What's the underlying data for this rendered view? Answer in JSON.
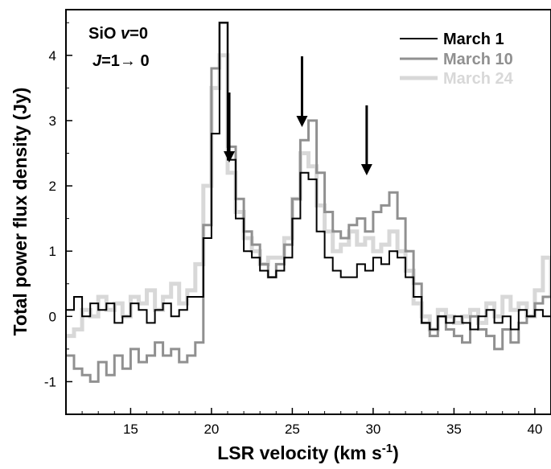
{
  "chart_data": {
    "type": "line",
    "xlabel_main": "LSR velocity (km s",
    "xlabel_sup": "-1",
    "xlabel_close": ")",
    "ylabel": "Total power flux density (Jy)",
    "annotation": {
      "line1_species": "SiO ",
      "line1_italic": "v",
      "line1_rest": "=0",
      "line2_italic": "J",
      "line2_rest": "=1→ 0"
    },
    "xlim": [
      11,
      41
    ],
    "ylim": [
      -1.5,
      4.7
    ],
    "xticks": [
      15,
      20,
      25,
      30,
      35,
      40
    ],
    "yticks": [
      -1,
      0,
      1,
      2,
      3,
      4
    ],
    "legend_position": "top-right",
    "arrows_x": [
      21.1,
      25.6,
      29.6
    ],
    "series": [
      {
        "name": "March 1",
        "color": "#000000",
        "x": [
          11.0,
          11.5,
          12.0,
          12.5,
          13.0,
          13.5,
          14.0,
          14.5,
          15.0,
          15.5,
          16.0,
          16.5,
          17.0,
          17.5,
          18.0,
          18.5,
          19.0,
          19.5,
          20.0,
          20.5,
          21.0,
          21.5,
          22.0,
          22.5,
          23.0,
          23.5,
          24.0,
          24.5,
          25.0,
          25.5,
          26.0,
          26.5,
          27.0,
          27.5,
          28.0,
          28.5,
          29.0,
          29.5,
          30.0,
          30.5,
          31.0,
          31.5,
          32.0,
          32.5,
          33.0,
          33.5,
          34.0,
          34.5,
          35.0,
          35.5,
          36.0,
          36.5,
          37.0,
          37.5,
          38.0,
          38.5,
          39.0,
          39.5,
          40.0,
          40.5,
          41.0
        ],
        "y": [
          0.1,
          0.3,
          0.0,
          0.2,
          0.1,
          0.2,
          -0.1,
          0.0,
          0.2,
          0.1,
          -0.1,
          0.1,
          0.2,
          0.0,
          0.1,
          0.3,
          0.3,
          1.2,
          2.8,
          4.5,
          2.4,
          1.5,
          1.0,
          0.9,
          0.7,
          0.6,
          0.7,
          0.9,
          1.5,
          2.2,
          2.1,
          1.3,
          0.9,
          0.7,
          0.6,
          0.6,
          0.8,
          0.7,
          0.9,
          0.8,
          1.0,
          0.9,
          0.6,
          0.3,
          -0.1,
          -0.2,
          0.0,
          -0.1,
          0.0,
          -0.1,
          -0.2,
          0.0,
          0.1,
          -0.1,
          0.0,
          -0.2,
          0.1,
          0.0,
          0.1,
          0.0,
          0.1
        ]
      },
      {
        "name": "March 10",
        "color": "#909090",
        "x": [
          11.0,
          11.5,
          12.0,
          12.5,
          13.0,
          13.5,
          14.0,
          14.5,
          15.0,
          15.5,
          16.0,
          16.5,
          17.0,
          17.5,
          18.0,
          18.5,
          19.0,
          19.5,
          20.0,
          20.5,
          21.0,
          21.5,
          22.0,
          22.5,
          23.0,
          23.5,
          24.0,
          24.5,
          25.0,
          25.5,
          26.0,
          26.5,
          27.0,
          27.5,
          28.0,
          28.5,
          29.0,
          29.5,
          30.0,
          30.5,
          31.0,
          31.5,
          32.0,
          32.5,
          33.0,
          33.5,
          34.0,
          34.5,
          35.0,
          35.5,
          36.0,
          36.5,
          37.0,
          37.5,
          38.0,
          38.5,
          39.0,
          39.5,
          40.0,
          40.5,
          41.0
        ],
        "y": [
          -0.6,
          -0.8,
          -0.9,
          -1.0,
          -0.7,
          -0.9,
          -0.6,
          -0.8,
          -0.5,
          -0.7,
          -0.6,
          -0.4,
          -0.6,
          -0.5,
          -0.7,
          -0.6,
          -0.4,
          1.4,
          3.8,
          4.5,
          2.6,
          1.8,
          1.3,
          1.1,
          0.8,
          0.6,
          0.8,
          1.1,
          1.8,
          2.7,
          3.0,
          2.2,
          1.6,
          1.3,
          1.2,
          1.4,
          1.5,
          1.3,
          1.6,
          1.7,
          1.9,
          1.5,
          1.0,
          0.5,
          -0.1,
          -0.3,
          0.0,
          -0.2,
          -0.3,
          -0.4,
          0.0,
          -0.2,
          -0.3,
          -0.5,
          -0.2,
          -0.4,
          -0.1,
          0.0,
          0.2,
          0.3,
          0.3
        ]
      },
      {
        "name": "March 24",
        "color": "#d8d8d8",
        "x": [
          11.0,
          11.5,
          12.0,
          12.5,
          13.0,
          13.5,
          14.0,
          14.5,
          15.0,
          15.5,
          16.0,
          16.5,
          17.0,
          17.5,
          18.0,
          18.5,
          19.0,
          19.5,
          20.0,
          20.5,
          21.0,
          21.5,
          22.0,
          22.5,
          23.0,
          23.5,
          24.0,
          24.5,
          25.0,
          25.5,
          26.0,
          26.5,
          27.0,
          27.5,
          28.0,
          28.5,
          29.0,
          29.5,
          30.0,
          30.5,
          31.0,
          31.5,
          32.0,
          32.5,
          33.0,
          33.5,
          34.0,
          34.5,
          35.0,
          35.5,
          36.0,
          36.5,
          37.0,
          37.5,
          38.0,
          38.5,
          39.0,
          39.5,
          40.0,
          40.5,
          41.0
        ],
        "y": [
          -0.3,
          -0.2,
          0.1,
          0.0,
          0.3,
          0.1,
          0.2,
          0.0,
          0.3,
          0.2,
          0.4,
          0.1,
          0.3,
          0.5,
          0.2,
          0.4,
          0.8,
          2.0,
          3.5,
          4.0,
          2.2,
          1.6,
          1.2,
          1.0,
          0.8,
          0.9,
          0.9,
          1.2,
          1.8,
          2.5,
          2.3,
          1.7,
          1.3,
          1.0,
          1.1,
          1.3,
          1.1,
          1.2,
          1.0,
          1.1,
          1.3,
          1.0,
          0.7,
          0.2,
          0.0,
          -0.2,
          0.1,
          0.0,
          -0.1,
          0.0,
          0.1,
          -0.1,
          0.2,
          0.0,
          0.3,
          0.1,
          0.2,
          0.0,
          0.4,
          0.9,
          0.3
        ]
      }
    ]
  }
}
